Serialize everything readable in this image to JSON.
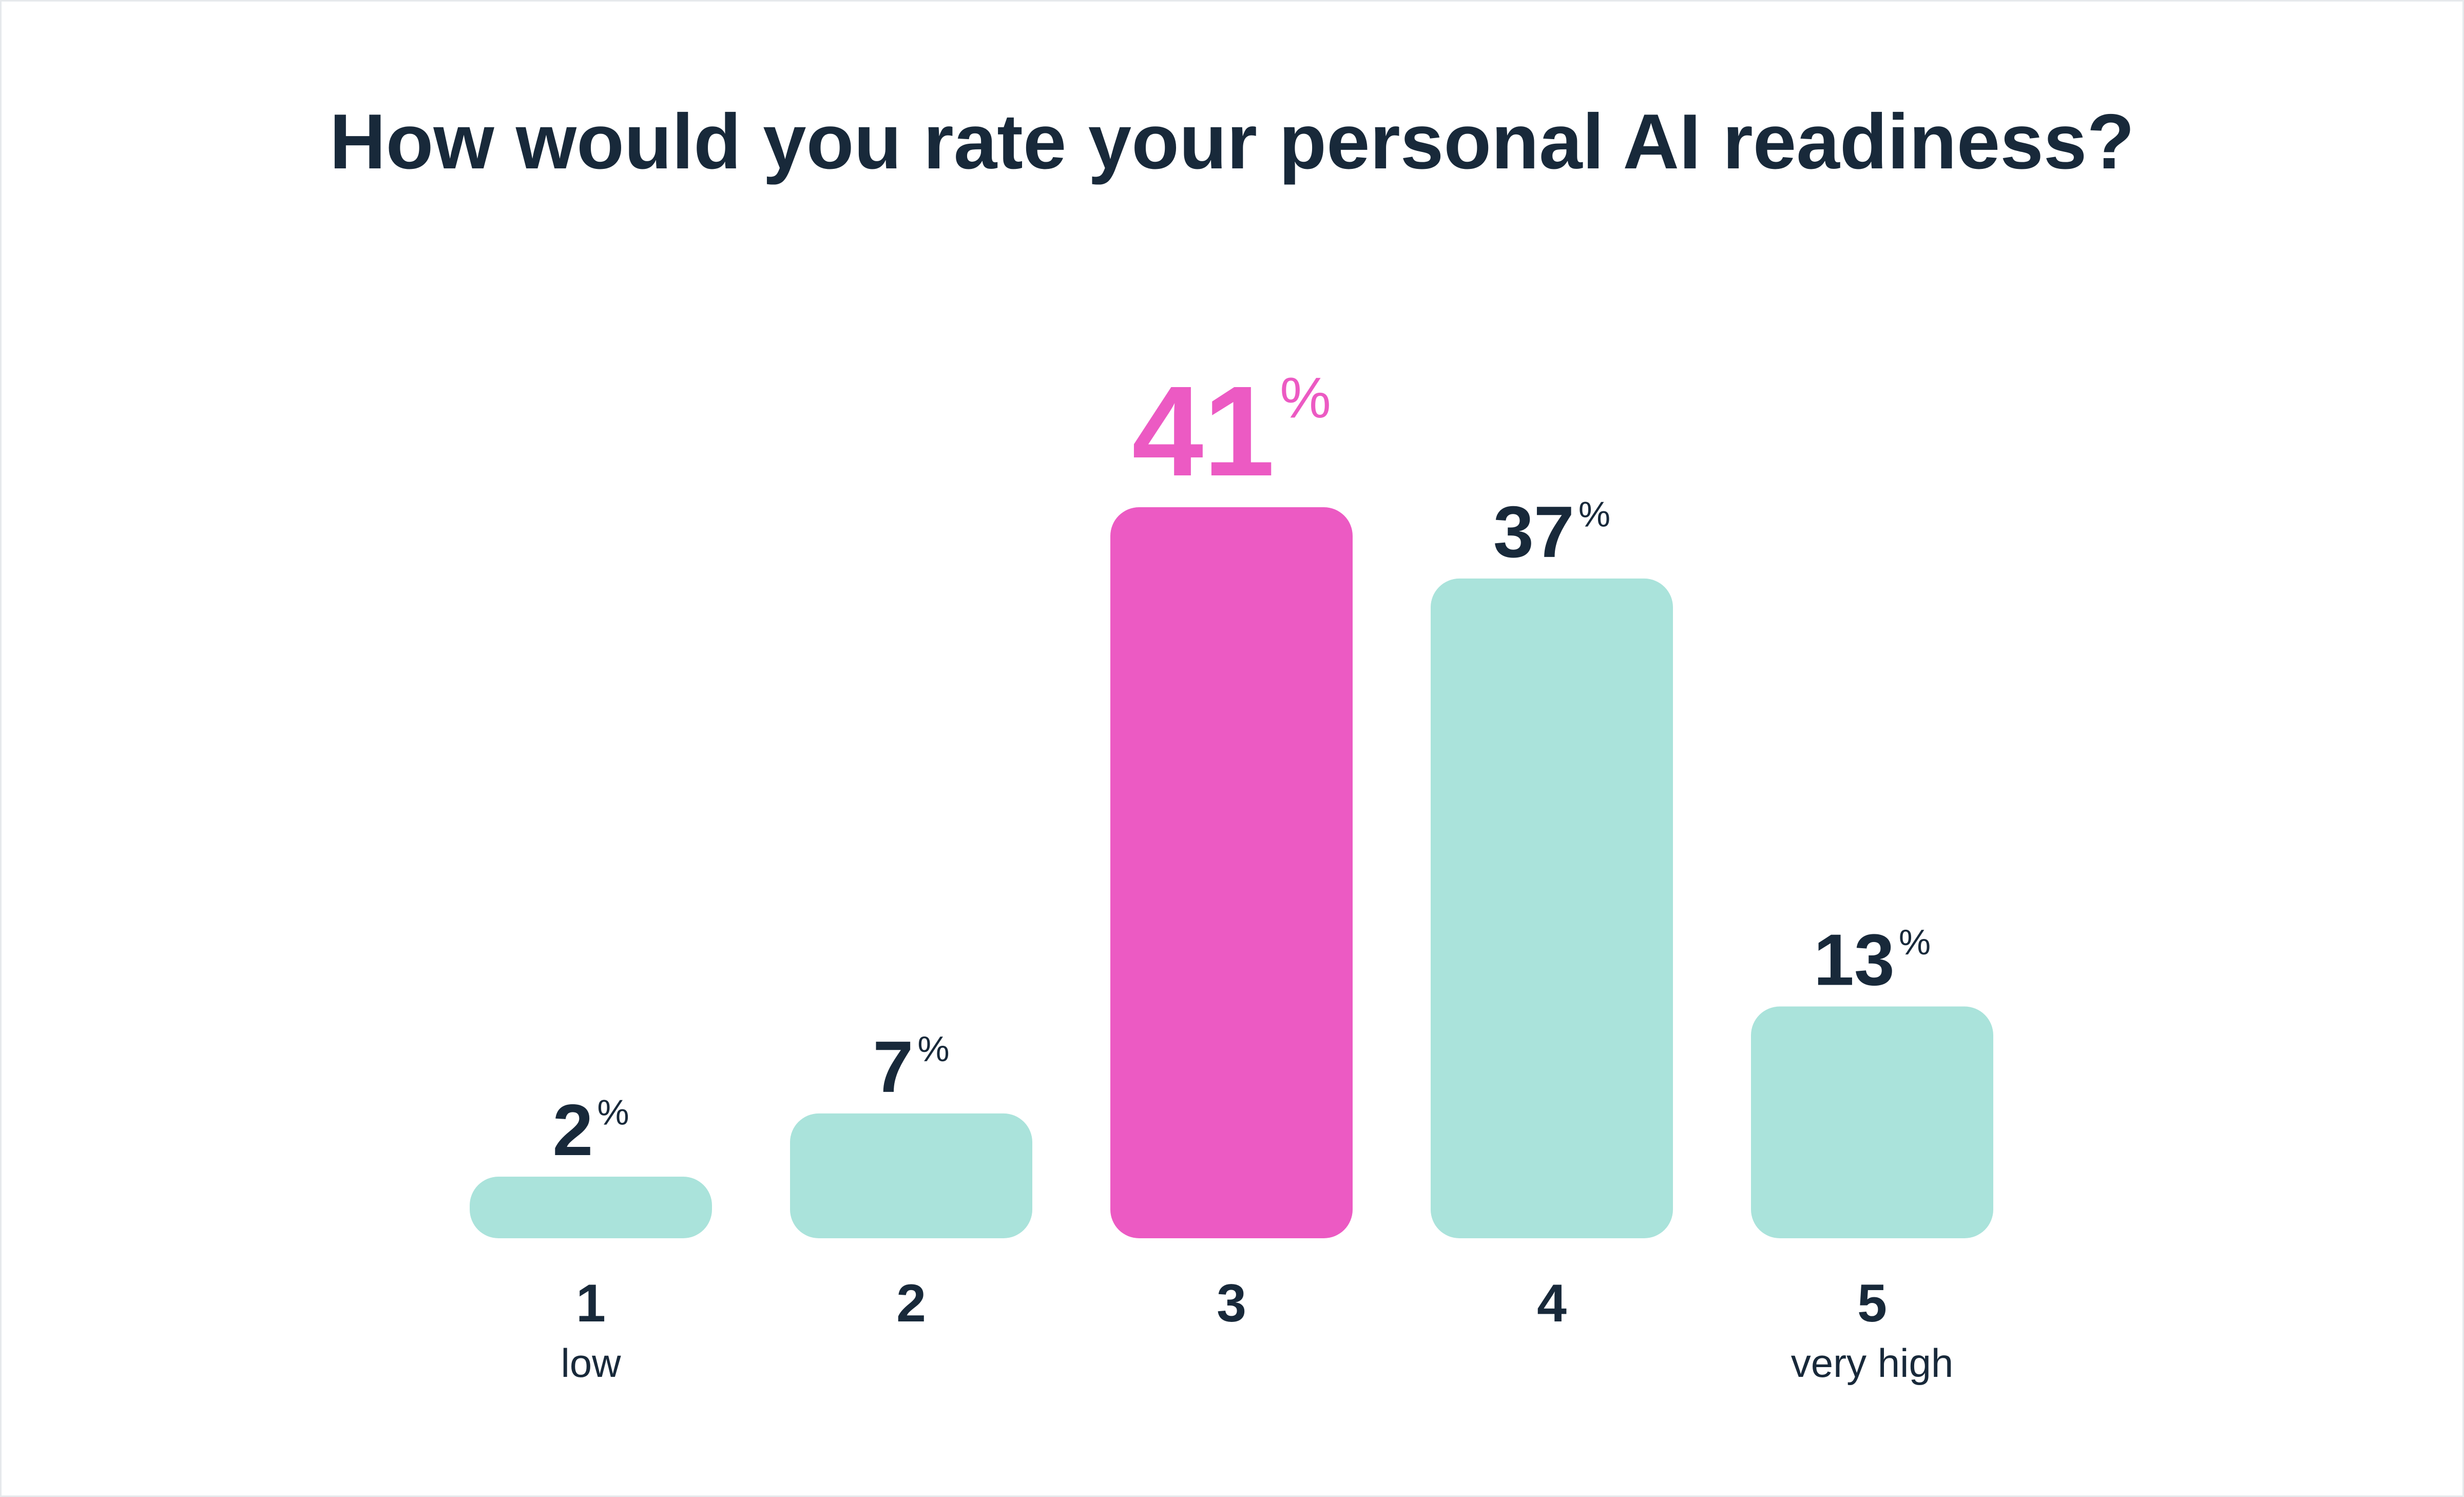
{
  "chart_data": {
    "type": "bar",
    "title": "How would you rate your personal AI readiness?",
    "categories": [
      "1",
      "2",
      "3",
      "4",
      "5"
    ],
    "category_sublabels": [
      "low",
      "",
      "",
      "",
      "very high"
    ],
    "values": [
      2,
      7,
      41,
      37,
      13
    ],
    "value_labels": [
      "2",
      "7",
      "41",
      "37",
      "13"
    ],
    "value_suffix": "%",
    "highlight_index": 2,
    "xlabel": "",
    "ylabel": "",
    "ylim": [
      0,
      41
    ],
    "grid": false,
    "legend": "none"
  },
  "colors": {
    "text": "#18293a",
    "bar": "#aae3db",
    "highlight": "#ec5ac3",
    "background": "#ffffff",
    "border": "#e6e9ec"
  }
}
